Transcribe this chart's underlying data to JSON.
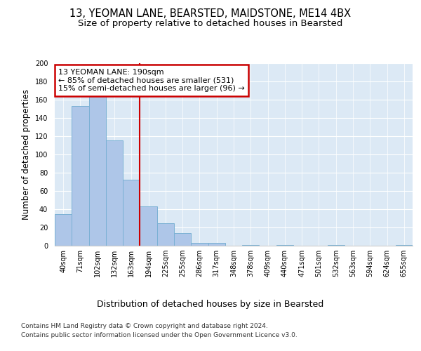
{
  "title_line1": "13, YEOMAN LANE, BEARSTED, MAIDSTONE, ME14 4BX",
  "title_line2": "Size of property relative to detached houses in Bearsted",
  "xlabel": "Distribution of detached houses by size in Bearsted",
  "ylabel": "Number of detached properties",
  "categories": [
    "40sqm",
    "71sqm",
    "102sqm",
    "132sqm",
    "163sqm",
    "194sqm",
    "225sqm",
    "255sqm",
    "286sqm",
    "317sqm",
    "348sqm",
    "378sqm",
    "409sqm",
    "440sqm",
    "471sqm",
    "501sqm",
    "532sqm",
    "563sqm",
    "594sqm",
    "624sqm",
    "655sqm"
  ],
  "values": [
    35,
    153,
    165,
    115,
    72,
    43,
    25,
    14,
    3,
    3,
    0,
    1,
    0,
    1,
    0,
    0,
    1,
    0,
    0,
    0,
    1
  ],
  "bar_color": "#aec6e8",
  "bar_edgecolor": "#7ab0d4",
  "vline_index": 5,
  "vline_color": "#cc0000",
  "annotation_text": "13 YEOMAN LANE: 190sqm\n← 85% of detached houses are smaller (531)\n15% of semi-detached houses are larger (96) →",
  "annotation_box_color": "#cc0000",
  "ylim": [
    0,
    200
  ],
  "yticks": [
    0,
    20,
    40,
    60,
    80,
    100,
    120,
    140,
    160,
    180,
    200
  ],
  "plot_bg_color": "#dce9f5",
  "footer_line1": "Contains HM Land Registry data © Crown copyright and database right 2024.",
  "footer_line2": "Contains public sector information licensed under the Open Government Licence v3.0.",
  "title_fontsize": 10.5,
  "subtitle_fontsize": 9.5,
  "tick_fontsize": 7,
  "ylabel_fontsize": 8.5,
  "xlabel_fontsize": 9
}
